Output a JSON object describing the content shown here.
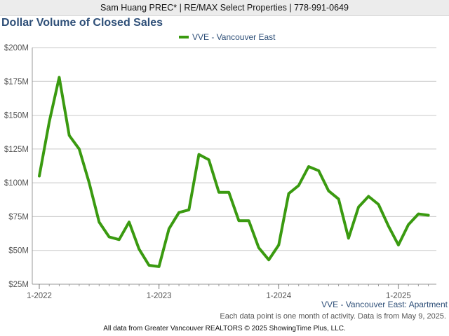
{
  "header": {
    "contact": "Sam Huang PREC* | RE/MAX Select Properties | 778-991-0649"
  },
  "chart_data": {
    "type": "line",
    "title": "Dollar Volume of Closed Sales",
    "ylim": [
      25,
      200
    ],
    "ytick_values": [
      200,
      175,
      150,
      125,
      100,
      75,
      50,
      25
    ],
    "ytick_labels": [
      "$200M",
      "$175M",
      "$150M",
      "$125M",
      "$100M",
      "$75M",
      "$50M",
      "$25M"
    ],
    "xtick_labels": [
      "1-2022",
      "1-2023",
      "1-2024",
      "1-2025"
    ],
    "xtick_index": [
      0,
      12,
      24,
      36
    ],
    "x_count": 40,
    "grid": true,
    "legend_position": "top",
    "series": [
      {
        "name": "VVE - Vancouver East",
        "color": "#3a9a10",
        "values": [
          105,
          145,
          178,
          135,
          125,
          100,
          71,
          60,
          58,
          71,
          51,
          39,
          38,
          66,
          78,
          80,
          121,
          117,
          93,
          93,
          72,
          72,
          52,
          43,
          54,
          92,
          98,
          112,
          109,
          94,
          88,
          59,
          82,
          90,
          84,
          68,
          54,
          69,
          77,
          76
        ]
      }
    ],
    "subcaption": "VVE - Vancouver East: Apartment"
  },
  "note": "Each data point is one month of activity. Data is from May 9, 2025.",
  "footer": "All data from Greater Vancouver REALTORS © 2025 ShowingTime Plus, LLC."
}
